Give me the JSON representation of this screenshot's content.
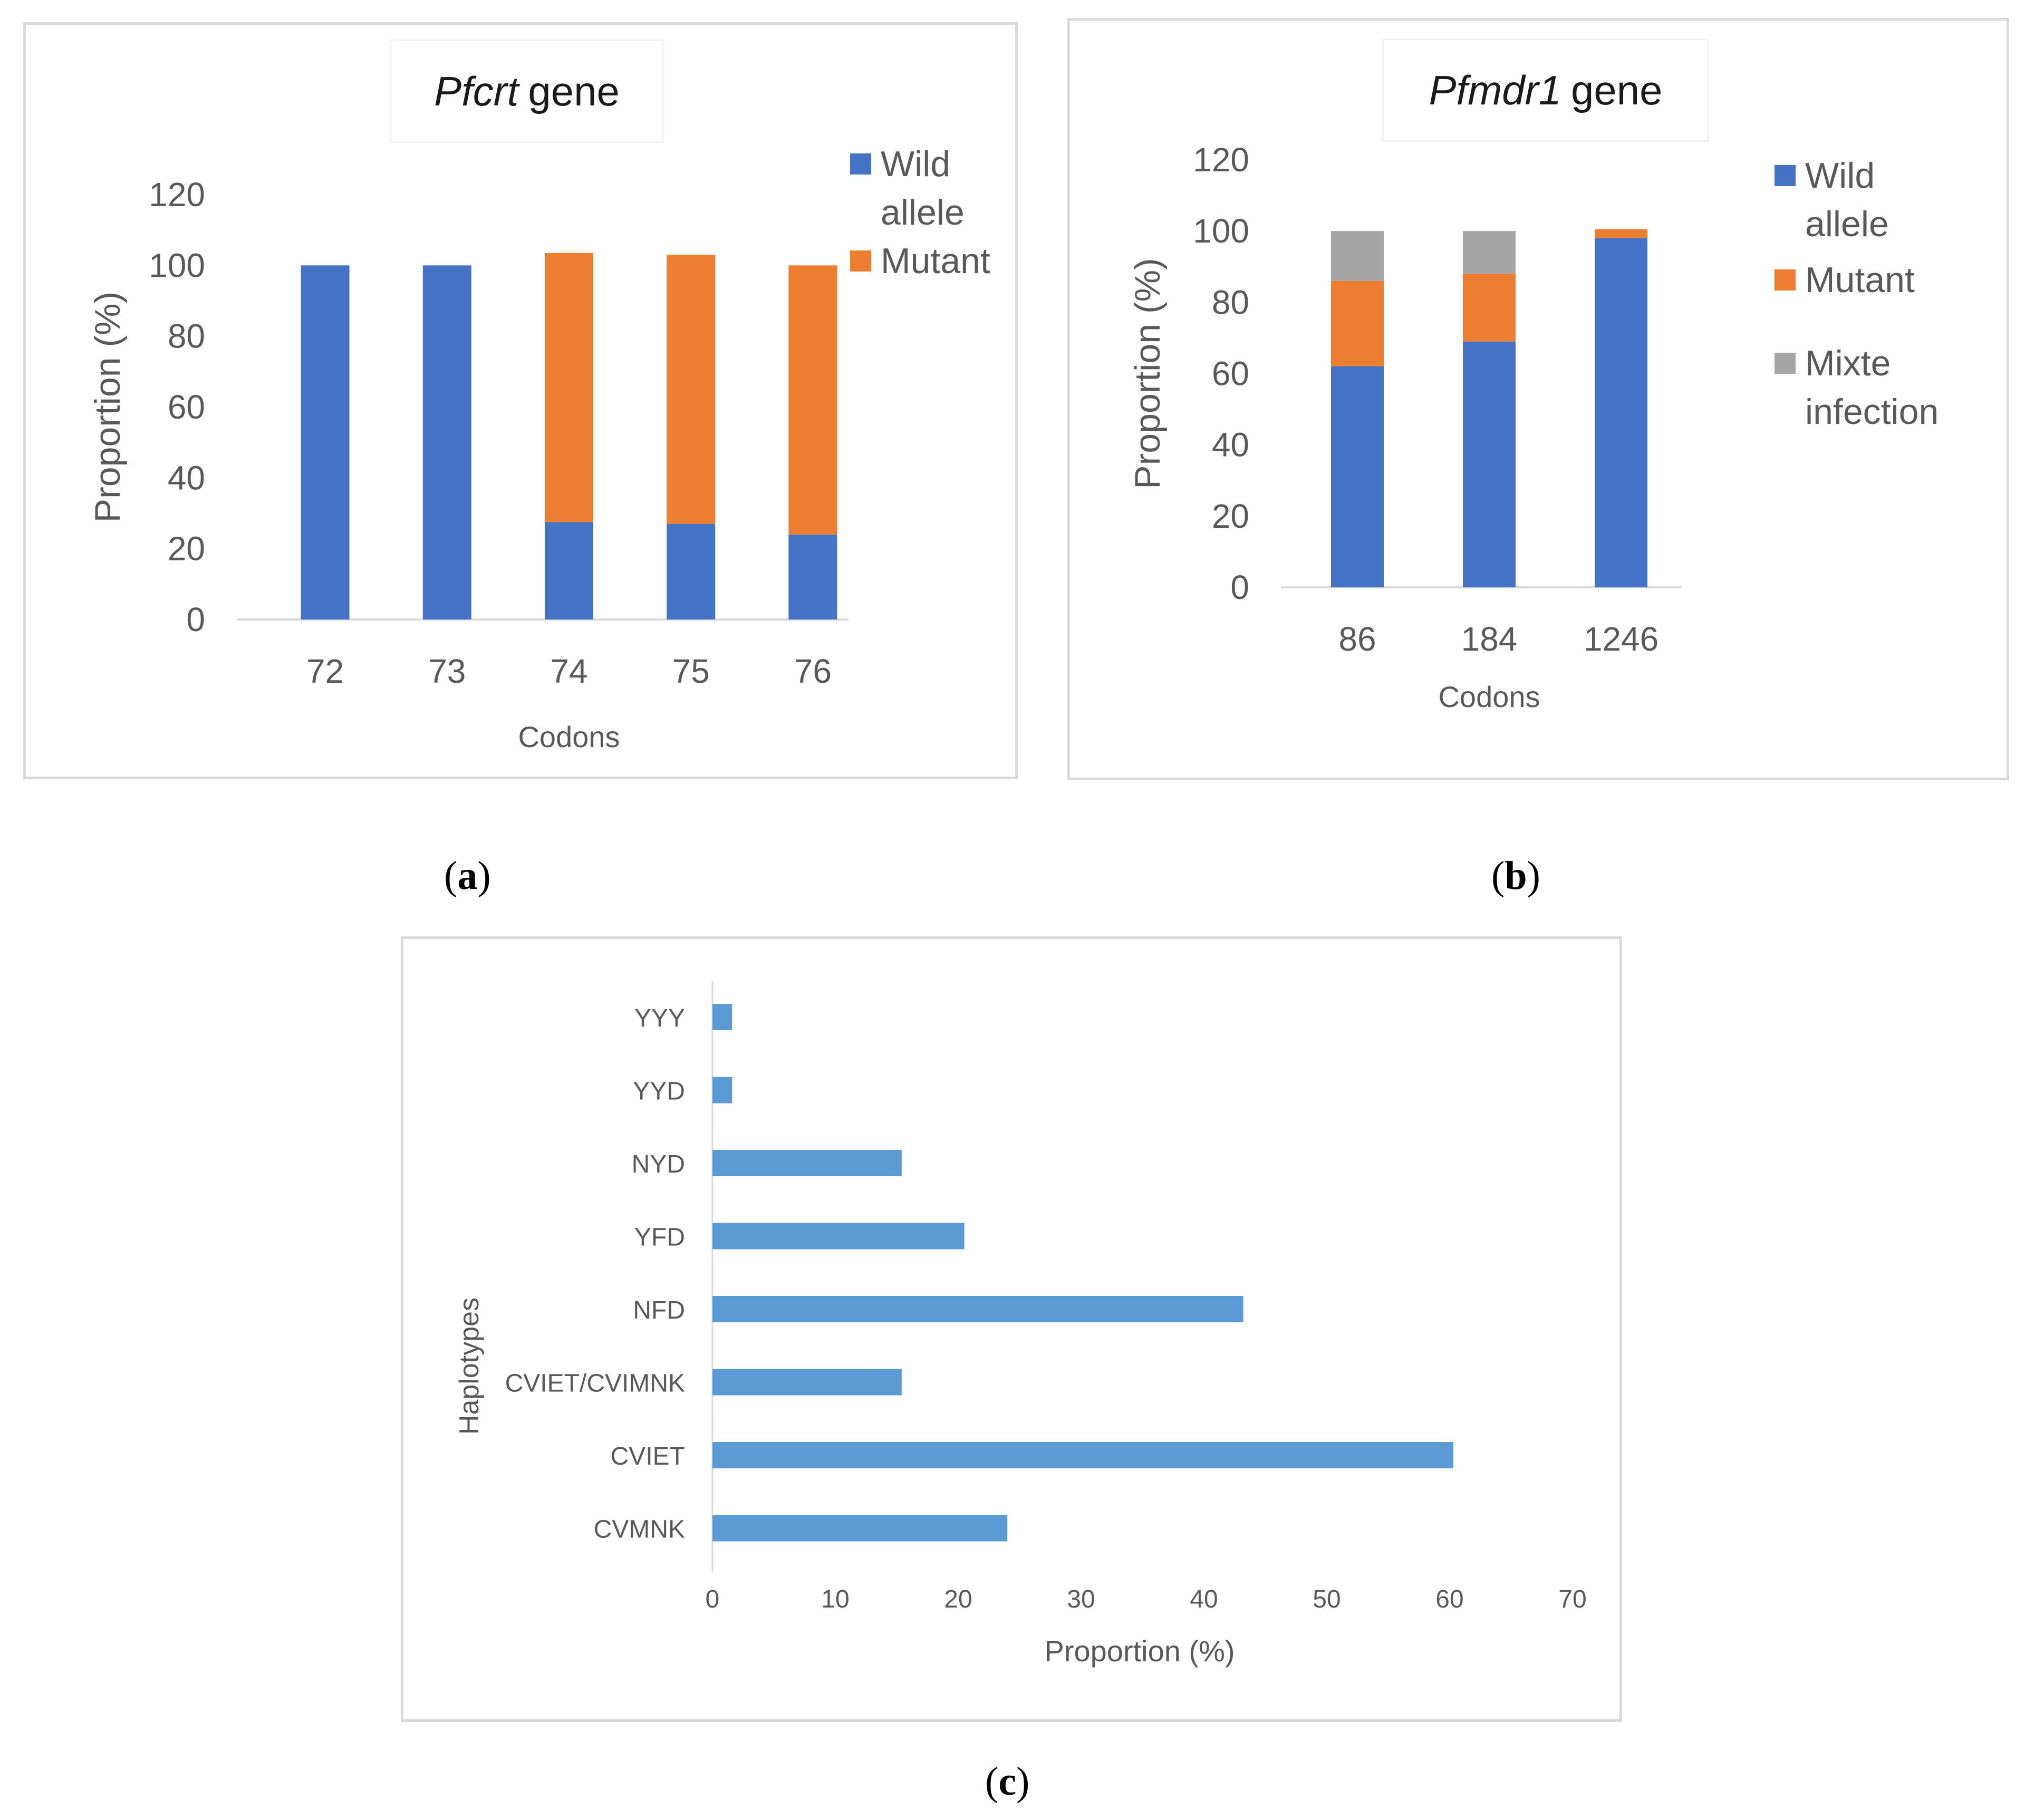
{
  "panels": {
    "a": {
      "caption_open": "(",
      "caption_letter": "a",
      "caption_close": ")",
      "title_italic": "Pfcrt",
      "title_rest": "gene"
    },
    "b": {
      "caption_open": "(",
      "caption_letter": "b",
      "caption_close": ")",
      "title_italic": "Pfmdr1",
      "title_rest": "gene"
    },
    "c": {
      "caption_open": "(",
      "caption_letter": "c",
      "caption_close": ")"
    }
  },
  "chart_data": [
    {
      "id": "a",
      "type": "bar",
      "stacked": true,
      "title": "Pfcrt gene",
      "xlabel": "Codons",
      "ylabel": "Proportion (%)",
      "ylim": [
        0,
        120
      ],
      "yticks": [
        0,
        20,
        40,
        60,
        80,
        100,
        120
      ],
      "categories": [
        "72",
        "73",
        "74",
        "75",
        "76"
      ],
      "series": [
        {
          "name": "Wild allele",
          "name_lines": [
            "Wild",
            "allele"
          ],
          "color": "#4472c4",
          "values": [
            100,
            100,
            27.5,
            27,
            24
          ]
        },
        {
          "name": "Mutant",
          "name_lines": [
            "Mutant"
          ],
          "color": "#ed7d31",
          "values": [
            0,
            0,
            76,
            76,
            76
          ]
        }
      ],
      "legend_position": "right"
    },
    {
      "id": "b",
      "type": "bar",
      "stacked": true,
      "title": "Pfmdr1 gene",
      "xlabel": "Codons",
      "ylabel": "Proportion (%)",
      "ylim": [
        0,
        120
      ],
      "yticks": [
        0,
        20,
        40,
        60,
        80,
        100,
        120
      ],
      "categories": [
        "86",
        "184",
        "1246"
      ],
      "series": [
        {
          "name": "Wild allele",
          "name_lines": [
            "Wild",
            "allele"
          ],
          "color": "#4472c4",
          "values": [
            62,
            69,
            98
          ]
        },
        {
          "name": "Mutant",
          "name_lines": [
            "Mutant"
          ],
          "color": "#ed7d31",
          "values": [
            24,
            19,
            2.5
          ]
        },
        {
          "name": "Mixte infection",
          "name_lines": [
            "Mixte",
            "infection"
          ],
          "color": "#a5a5a5",
          "values": [
            14,
            12,
            0
          ]
        }
      ],
      "legend_position": "right"
    },
    {
      "id": "c",
      "type": "bar",
      "orientation": "horizontal",
      "xlabel": "Proportion (%)",
      "ylabel": "Haplotypes",
      "xlim": [
        0,
        70
      ],
      "xticks": [
        0,
        10,
        20,
        30,
        40,
        50,
        60,
        70
      ],
      "categories": [
        "CVMNK",
        "CVIET",
        "CVIET/CVIMNK",
        "NFD",
        "YFD",
        "NYD",
        "YYD",
        "YYY"
      ],
      "values": [
        24,
        60.3,
        15.4,
        43.2,
        20.5,
        15.4,
        1.6,
        1.6
      ],
      "color": "#5b9bd5"
    }
  ]
}
